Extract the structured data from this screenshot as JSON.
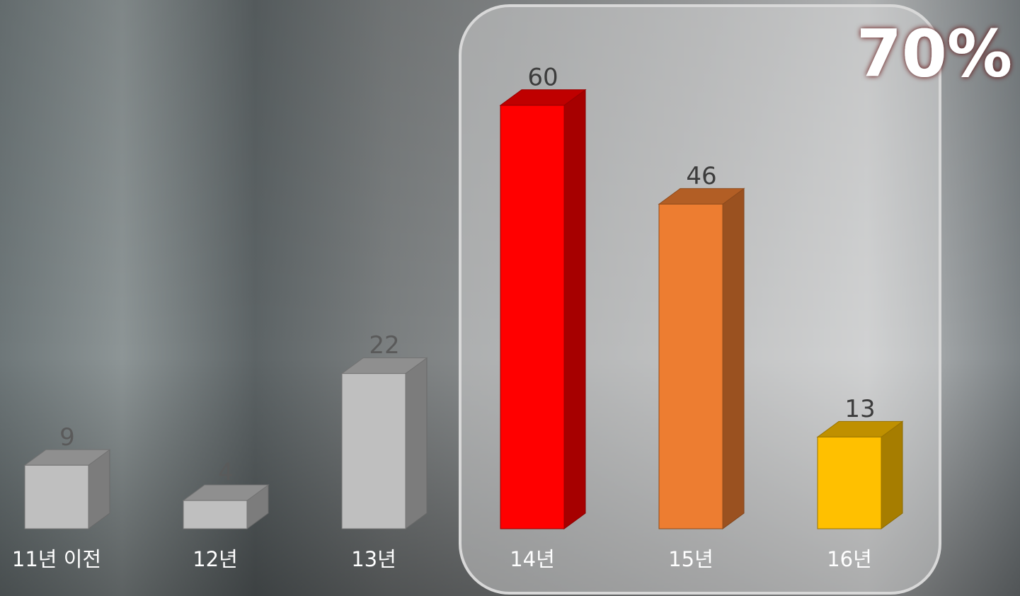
{
  "chart_data": {
    "type": "bar3d",
    "categories": [
      "11년 이전",
      "12년",
      "13년",
      "14년",
      "15년",
      "16년"
    ],
    "values": [
      9,
      4,
      22,
      60,
      46,
      13
    ],
    "colors": [
      "#bfbfbf",
      "#bfbfbf",
      "#bfbfbf",
      "#ff0000",
      "#ed7d31",
      "#ffc000"
    ],
    "annotation": "70%"
  }
}
